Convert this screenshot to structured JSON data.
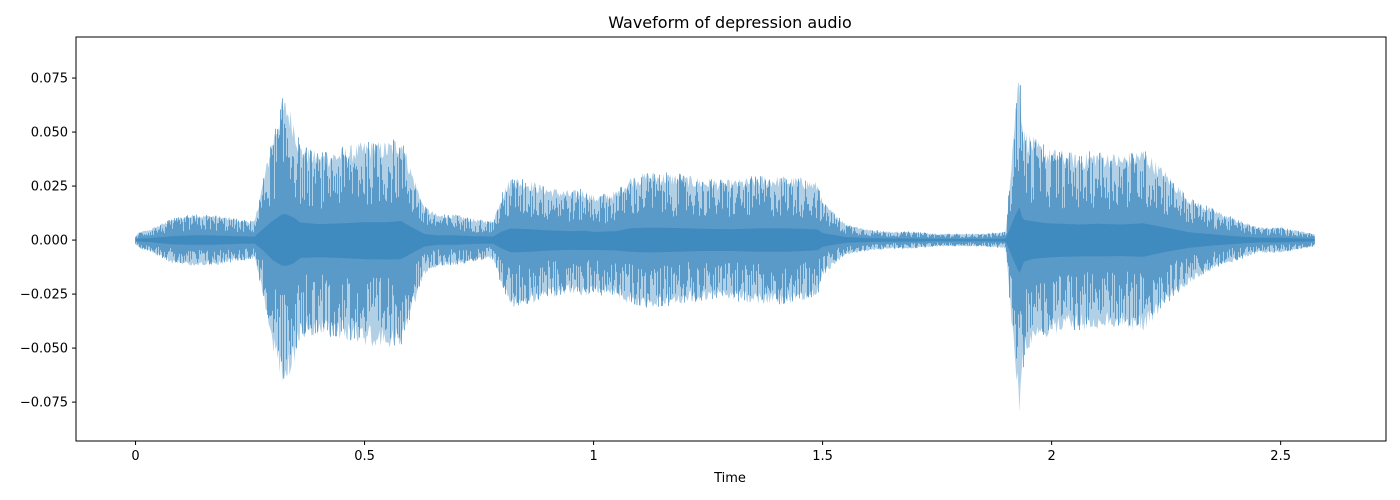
{
  "chart_data": {
    "type": "area",
    "title": "Waveform of depression audio",
    "xlabel": "Time",
    "ylabel": "",
    "xlim": [
      -0.13,
      2.73
    ],
    "ylim": [
      -0.093,
      0.094
    ],
    "xticks": [
      0,
      0.5,
      1,
      1.5,
      2,
      2.5
    ],
    "xtick_labels": [
      "0",
      "0.5",
      "1",
      "1.5",
      "2",
      "2.5"
    ],
    "yticks": [
      -0.075,
      -0.05,
      -0.025,
      0.0,
      0.025,
      0.05,
      0.075
    ],
    "ytick_labels": [
      "−0.075",
      "−0.050",
      "−0.025",
      "0.000",
      "0.025",
      "0.050",
      "0.075"
    ],
    "grid": false,
    "legend": false,
    "color": "#1f77b4",
    "alpha": 0.6,
    "duration": 2.575,
    "envelope": {
      "t": [
        0.0,
        0.01,
        0.03,
        0.08,
        0.12,
        0.17,
        0.22,
        0.26,
        0.28,
        0.3,
        0.32,
        0.33,
        0.345,
        0.36,
        0.4,
        0.45,
        0.5,
        0.55,
        0.58,
        0.6,
        0.63,
        0.66,
        0.7,
        0.74,
        0.78,
        0.8,
        0.82,
        0.86,
        0.9,
        0.95,
        0.98,
        1.0,
        1.05,
        1.08,
        1.12,
        1.18,
        1.24,
        1.3,
        1.36,
        1.42,
        1.46,
        1.49,
        1.5,
        1.55,
        1.6,
        1.65,
        1.7,
        1.75,
        1.8,
        1.85,
        1.9,
        1.92,
        1.93,
        1.935,
        1.94,
        1.96,
        1.99,
        2.02,
        2.06,
        2.1,
        2.15,
        2.2,
        2.25,
        2.3,
        2.35,
        2.4,
        2.45,
        2.5,
        2.55,
        2.575
      ],
      "top": [
        0.002,
        0.004,
        0.005,
        0.01,
        0.012,
        0.012,
        0.01,
        0.009,
        0.03,
        0.05,
        0.066,
        0.066,
        0.058,
        0.045,
        0.041,
        0.043,
        0.046,
        0.046,
        0.049,
        0.035,
        0.016,
        0.012,
        0.012,
        0.01,
        0.009,
        0.022,
        0.03,
        0.028,
        0.025,
        0.023,
        0.024,
        0.021,
        0.023,
        0.03,
        0.032,
        0.031,
        0.029,
        0.028,
        0.03,
        0.03,
        0.029,
        0.027,
        0.018,
        0.008,
        0.005,
        0.004,
        0.004,
        0.003,
        0.003,
        0.003,
        0.004,
        0.062,
        0.085,
        0.06,
        0.052,
        0.048,
        0.043,
        0.042,
        0.04,
        0.042,
        0.04,
        0.043,
        0.032,
        0.02,
        0.015,
        0.01,
        0.006,
        0.006,
        0.004,
        0.003
      ],
      "bottom": [
        -0.002,
        -0.004,
        -0.005,
        -0.011,
        -0.012,
        -0.012,
        -0.01,
        -0.009,
        -0.028,
        -0.052,
        -0.066,
        -0.066,
        -0.06,
        -0.046,
        -0.044,
        -0.046,
        -0.049,
        -0.05,
        -0.049,
        -0.036,
        -0.017,
        -0.012,
        -0.012,
        -0.01,
        -0.009,
        -0.022,
        -0.032,
        -0.03,
        -0.027,
        -0.025,
        -0.026,
        -0.025,
        -0.027,
        -0.03,
        -0.032,
        -0.03,
        -0.028,
        -0.028,
        -0.03,
        -0.03,
        -0.028,
        -0.026,
        -0.017,
        -0.007,
        -0.005,
        -0.004,
        -0.004,
        -0.003,
        -0.003,
        -0.003,
        -0.004,
        -0.06,
        -0.085,
        -0.07,
        -0.055,
        -0.048,
        -0.045,
        -0.043,
        -0.042,
        -0.042,
        -0.041,
        -0.043,
        -0.03,
        -0.02,
        -0.014,
        -0.01,
        -0.006,
        -0.006,
        -0.004,
        -0.003
      ]
    }
  }
}
